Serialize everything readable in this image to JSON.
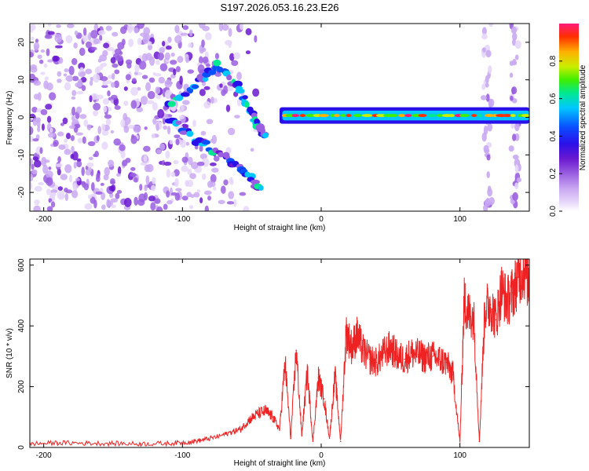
{
  "title": "S197.2026.053.16.23.E26",
  "colors": {
    "snr_line": "#ee2222",
    "colormap": [
      "#ffffff",
      "#e6d6fa",
      "#c9a8f2",
      "#9a5fe0",
      "#6a18d0",
      "#2a10e8",
      "#0a50ff",
      "#00c8ff",
      "#00e890",
      "#40ee00",
      "#c8ee00",
      "#ffb000",
      "#ff3000",
      "#ff1a7a"
    ]
  },
  "chart_data": [
    {
      "type": "heatmap",
      "title": "S197.2026.053.16.23.E26",
      "xlabel": "Height of straight line (km)",
      "ylabel": "Frequency (Hz)",
      "xlim": [
        -210,
        150
      ],
      "ylim": [
        -25,
        25
      ],
      "xticks": [
        -200,
        -100,
        0,
        100
      ],
      "yticks": [
        -20,
        -10,
        0,
        10,
        20
      ],
      "colorbar": {
        "label": "Normalized spectral amplitude",
        "range": [
          0.0,
          1.0
        ],
        "ticks": [
          0.0,
          0.2,
          0.4,
          0.6,
          0.8
        ]
      },
      "features": {
        "noise_region_km": [
          -210,
          -60
        ],
        "descending_trace": [
          [
            -110,
            4
          ],
          [
            -90,
            9
          ],
          [
            -75,
            14
          ],
          [
            -60,
            8
          ],
          [
            -50,
            1
          ],
          [
            -45,
            -2
          ],
          [
            -40,
            -6
          ]
        ],
        "ascending_trace": [
          [
            -110,
            0
          ],
          [
            -90,
            -6
          ],
          [
            -70,
            -10
          ],
          [
            -55,
            -15
          ],
          [
            -42,
            -20
          ]
        ],
        "steady_line": {
          "x_start_km": -30,
          "x_end_km": 150,
          "freq_hz": 0.5
        },
        "vertical_bands_km": [
          120,
          140
        ]
      }
    },
    {
      "type": "line",
      "xlabel": "Height of straight line (km)",
      "ylabel": "SNR (10 * v/v)",
      "xlim": [
        -210,
        150
      ],
      "ylim": [
        0,
        620
      ],
      "xticks": [
        -200,
        -100,
        0,
        100
      ],
      "yticks": [
        0,
        200,
        400,
        600
      ],
      "series": [
        {
          "name": "SNR",
          "x": [
            -210,
            -190,
            -170,
            -150,
            -130,
            -110,
            -95,
            -85,
            -75,
            -65,
            -58,
            -52,
            -46,
            -40,
            -35,
            -30,
            -26,
            -22,
            -18,
            -14,
            -10,
            -6,
            -2,
            2,
            6,
            10,
            14,
            18,
            22,
            26,
            30,
            35,
            40,
            45,
            50,
            55,
            60,
            65,
            70,
            75,
            80,
            85,
            90,
            95,
            100,
            103,
            106,
            110,
            114,
            118,
            122,
            126,
            130,
            134,
            138,
            142,
            146,
            150
          ],
          "values": [
            12,
            15,
            14,
            13,
            12,
            13,
            18,
            25,
            35,
            50,
            60,
            90,
            110,
            120,
            100,
            60,
            280,
            30,
            320,
            40,
            250,
            20,
            230,
            160,
            30,
            240,
            20,
            380,
            330,
            370,
            320,
            290,
            280,
            310,
            330,
            300,
            290,
            310,
            305,
            295,
            300,
            290,
            280,
            240,
            15,
            480,
            440,
            430,
            20,
            460,
            470,
            420,
            520,
            480,
            510,
            560,
            590,
            540
          ]
        }
      ]
    }
  ]
}
